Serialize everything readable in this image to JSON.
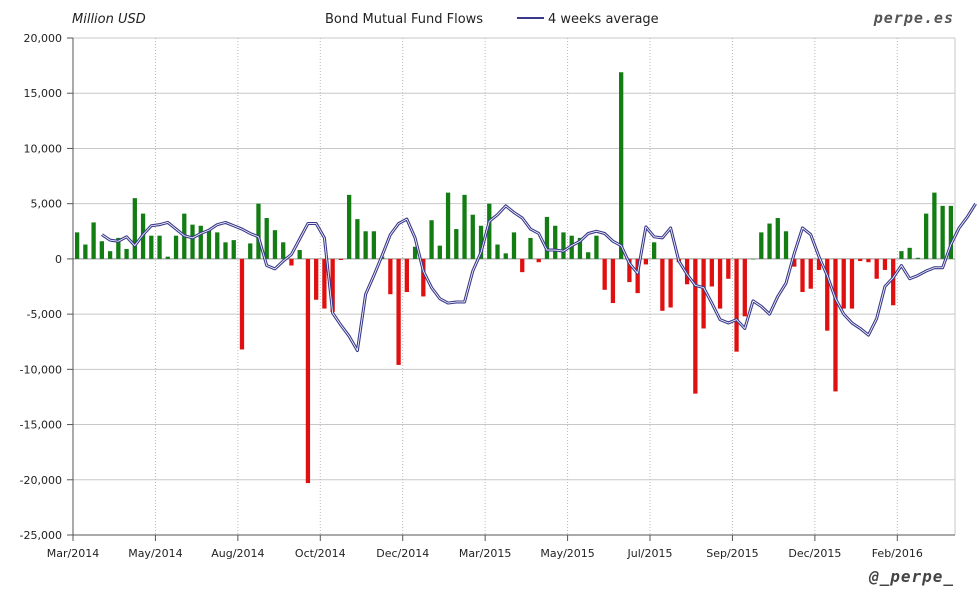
{
  "header": {
    "unit_label": "Million USD",
    "title": "Bond Mutual Fund Flows",
    "legend_line_label": "4 weeks average",
    "brand": "perpe.es"
  },
  "footer": {
    "handle": "@_perpe_"
  },
  "colors": {
    "positive_bar": "#137d13",
    "negative_bar": "#e01010",
    "average_line": "#3a3a8c",
    "grid": "#c8c8c8",
    "axis": "#555555"
  },
  "chart_data": {
    "type": "bar",
    "title": "Bond Mutual Fund Flows",
    "ylabel": "Million USD",
    "xlabel": "",
    "ylim": [
      -25000,
      20000
    ],
    "yticks": [
      20000,
      15000,
      10000,
      5000,
      0,
      -5000,
      -10000,
      -15000,
      -20000,
      -25000
    ],
    "ytick_labels": [
      "20,000",
      "15,000",
      "10,000",
      "5,000",
      "0",
      "-5,000",
      "-10,000",
      "-15,000",
      "-20,000",
      "-25,000"
    ],
    "xticks": [
      {
        "index": 0,
        "label": "Mar/2014"
      },
      {
        "index": 10,
        "label": "May/2014"
      },
      {
        "index": 20,
        "label": "Aug/2014"
      },
      {
        "index": 30,
        "label": "Oct/2014"
      },
      {
        "index": 40,
        "label": "Dec/2014"
      },
      {
        "index": 50,
        "label": "Mar/2015"
      },
      {
        "index": 60,
        "label": "May/2015"
      },
      {
        "index": 70,
        "label": "Jul/2015"
      },
      {
        "index": 80,
        "label": "Sep/2015"
      },
      {
        "index": 90,
        "label": "Dec/2015"
      },
      {
        "index": 100,
        "label": "Feb/2016"
      }
    ],
    "grid": true,
    "legend": "top-center",
    "series": [
      {
        "name": "Bond Mutual Fund Flows",
        "type": "bar",
        "values": [
          2400,
          1300,
          3300,
          1600,
          700,
          1900,
          900,
          5500,
          4100,
          2100,
          2100,
          200,
          2100,
          4100,
          3100,
          3000,
          2600,
          2400,
          1500,
          1700,
          -8200,
          1400,
          5000,
          3700,
          2600,
          1500,
          -600,
          800,
          -20300,
          -3700,
          -4500,
          -4800,
          -100,
          5800,
          3600,
          2500,
          2500,
          200,
          -3200,
          -9600,
          -3000,
          1100,
          -3400,
          3500,
          1200,
          6000,
          2700,
          5800,
          4000,
          3000,
          5000,
          1300,
          500,
          2400,
          -1200,
          1900,
          -300,
          3800,
          3000,
          2400,
          2100,
          1900,
          600,
          2100,
          -2800,
          -4000,
          16900,
          -2100,
          -3100,
          -500,
          1500,
          -4700,
          -4400,
          -300,
          -2300,
          -12200,
          -6300,
          -2500,
          -4500,
          -1800,
          -8400,
          -5200,
          0,
          2400,
          3200,
          3700,
          2500,
          -700,
          -3000,
          -2700,
          -1000,
          -6500,
          -12000,
          -4500,
          -4500,
          -200,
          -300,
          -1800,
          -1000,
          -4200,
          700,
          1000,
          100,
          4100,
          6000,
          4800,
          4800
        ]
      },
      {
        "name": "4 weeks average",
        "type": "line",
        "start_index": 3,
        "values": [
          2200,
          1700,
          1600,
          2000,
          1200,
          2200,
          3000,
          3100,
          3300,
          2700,
          2100,
          1900,
          2300,
          2600,
          3100,
          3300,
          3000,
          2700,
          2300,
          2000,
          -600,
          -900,
          -200,
          400,
          1800,
          3200,
          3200,
          1900,
          -4900,
          -6000,
          -7000,
          -8300,
          -3200,
          -1500,
          300,
          2200,
          3200,
          3600,
          1900,
          -1100,
          -2600,
          -3600,
          -4000,
          -3900,
          -3900,
          -1100,
          600,
          3400,
          4000,
          4800,
          4200,
          3700,
          2700,
          2300,
          800,
          800,
          700,
          1200,
          1600,
          2300,
          2500,
          2300,
          1600,
          1200,
          -400,
          -1300,
          2900,
          2000,
          1900,
          2800,
          -200,
          -1400,
          -2400,
          -2600,
          -4000,
          -5500,
          -5800,
          -5500,
          -6300,
          -3800,
          -4300,
          -5000,
          -3400,
          -2200,
          500,
          2800,
          2200,
          200,
          -1500,
          -3600,
          -5000,
          -5800,
          -6300,
          -6900,
          -5400,
          -2500,
          -1700,
          -600,
          -1800,
          -1500,
          -1100,
          -800,
          -800,
          1300,
          2800,
          3800,
          5000
        ]
      }
    ]
  }
}
